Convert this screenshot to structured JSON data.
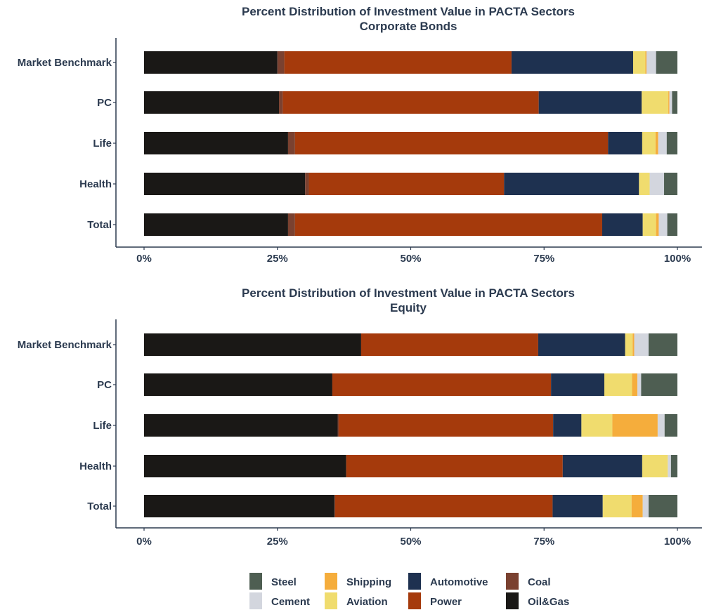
{
  "chart_data": [
    {
      "type": "bar",
      "orientation": "horizontal",
      "stacked": true,
      "title": "Percent Distribution of Investment Value in PACTA Sectors",
      "subtitle": "Corporate Bonds",
      "categories": [
        "Market Benchmark",
        "PC",
        "Life",
        "Health",
        "Total"
      ],
      "x_ticks": [
        "0%",
        "25%",
        "50%",
        "75%",
        "100%"
      ],
      "xlim": [
        0,
        100
      ],
      "grid": false,
      "series": [
        {
          "name": "Oil&Gas",
          "color": "#1a1816",
          "values": [
            25.0,
            25.3,
            27.0,
            30.2,
            27.0
          ]
        },
        {
          "name": "Coal",
          "color": "#7a4130",
          "values": [
            1.3,
            0.7,
            1.3,
            0.7,
            1.3
          ]
        },
        {
          "name": "Power",
          "color": "#a53a0c",
          "values": [
            42.6,
            48.0,
            58.7,
            36.6,
            57.6
          ]
        },
        {
          "name": "Automotive",
          "color": "#1e3150",
          "values": [
            22.8,
            19.3,
            6.4,
            25.3,
            7.6
          ]
        },
        {
          "name": "Aviation",
          "color": "#f0dc6e",
          "values": [
            2.3,
            5.0,
            2.5,
            2.0,
            2.5
          ]
        },
        {
          "name": "Shipping",
          "color": "#f5ad3c",
          "values": [
            0.2,
            0.2,
            0.5,
            0.0,
            0.5
          ]
        },
        {
          "name": "Cement",
          "color": "#d3d6de",
          "values": [
            1.8,
            0.5,
            1.6,
            2.7,
            1.6
          ]
        },
        {
          "name": "Steel",
          "color": "#4e5e52",
          "values": [
            4.0,
            1.0,
            2.0,
            2.5,
            1.9
          ]
        }
      ]
    },
    {
      "type": "bar",
      "orientation": "horizontal",
      "stacked": true,
      "title": "Percent Distribution of Investment Value in PACTA Sectors",
      "subtitle": "Equity",
      "categories": [
        "Market Benchmark",
        "PC",
        "Life",
        "Health",
        "Total"
      ],
      "x_ticks": [
        "0%",
        "25%",
        "50%",
        "75%",
        "100%"
      ],
      "xlim": [
        0,
        100
      ],
      "grid": false,
      "series": [
        {
          "name": "Oil&Gas",
          "color": "#1a1816",
          "values": [
            40.7,
            35.3,
            36.3,
            37.9,
            35.7
          ]
        },
        {
          "name": "Coal",
          "color": "#7a4130",
          "values": [
            0.0,
            0.0,
            0.2,
            0.0,
            0.1
          ]
        },
        {
          "name": "Power",
          "color": "#a53a0c",
          "values": [
            33.2,
            41.0,
            40.2,
            40.6,
            40.8
          ]
        },
        {
          "name": "Automotive",
          "color": "#1e3150",
          "values": [
            16.3,
            10.0,
            5.3,
            14.9,
            9.4
          ]
        },
        {
          "name": "Aviation",
          "color": "#f0dc6e",
          "values": [
            1.4,
            5.2,
            5.8,
            4.8,
            5.4
          ]
        },
        {
          "name": "Shipping",
          "color": "#f5ad3c",
          "values": [
            0.3,
            1.0,
            8.5,
            0.0,
            2.1
          ]
        },
        {
          "name": "Cement",
          "color": "#d3d6de",
          "values": [
            2.7,
            0.7,
            1.3,
            0.6,
            1.1
          ]
        },
        {
          "name": "Steel",
          "color": "#4e5e52",
          "values": [
            5.4,
            6.8,
            2.4,
            1.2,
            5.4
          ]
        }
      ]
    }
  ],
  "legend": {
    "position": "bottom",
    "items": [
      {
        "label": "Steel",
        "color": "#4e5e52"
      },
      {
        "label": "Cement",
        "color": "#d3d6de"
      },
      {
        "label": "Shipping",
        "color": "#f5ad3c"
      },
      {
        "label": "Aviation",
        "color": "#f0dc6e"
      },
      {
        "label": "Automotive",
        "color": "#1e3150"
      },
      {
        "label": "Power",
        "color": "#a53a0c"
      },
      {
        "label": "Coal",
        "color": "#7a4130"
      },
      {
        "label": "Oil&Gas",
        "color": "#1a1816"
      }
    ]
  },
  "axis_color": "#2b3a4f"
}
